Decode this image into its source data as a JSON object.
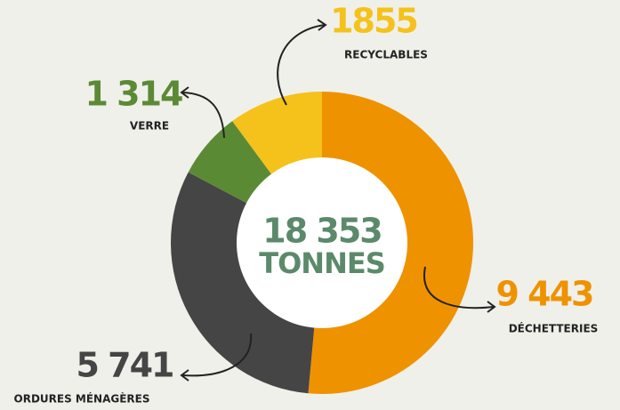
{
  "chart_data": {
    "type": "donut",
    "categories": [
      "DÉCHETTERIES",
      "ORDURES MÉNAGÈRES",
      "VERRE",
      "RECYCLABLES"
    ],
    "values": [
      9443,
      5741,
      1314,
      1855
    ],
    "value_labels": [
      "9 443",
      "5 741",
      "1 314",
      "1855"
    ],
    "colors": [
      "#ef9200",
      "#454545",
      "#5b8a35",
      "#f4c21b"
    ],
    "total": {
      "value": 18353,
      "label": "18 353"
    },
    "unit": "TONNES"
  }
}
